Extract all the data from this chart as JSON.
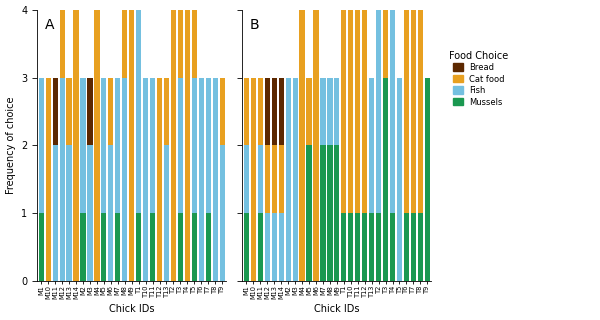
{
  "chick_ids": [
    "M1",
    "M10",
    "M11",
    "M12",
    "M13",
    "M14",
    "M2",
    "M3",
    "M4",
    "M5",
    "M6",
    "M7",
    "M8",
    "M9",
    "T1",
    "T10",
    "T11",
    "T12",
    "T13",
    "T2",
    "T3",
    "T4",
    "T5",
    "T6",
    "T7",
    "T8",
    "T9"
  ],
  "panel_A": {
    "Mussels": [
      1,
      0,
      0,
      0,
      0,
      0,
      1,
      0,
      0,
      1,
      0,
      1,
      0,
      0,
      1,
      0,
      1,
      0,
      0,
      0,
      1,
      0,
      1,
      0,
      1,
      0,
      0
    ],
    "Fish": [
      2,
      0,
      2,
      3,
      2,
      0,
      2,
      2,
      0,
      2,
      2,
      2,
      3,
      0,
      3,
      3,
      2,
      0,
      2,
      0,
      2,
      0,
      2,
      3,
      2,
      3,
      2
    ],
    "Cat_food": [
      0,
      3,
      0,
      1,
      1,
      4,
      0,
      0,
      4,
      0,
      1,
      0,
      1,
      4,
      0,
      0,
      0,
      3,
      1,
      4,
      1,
      4,
      1,
      0,
      0,
      0,
      1
    ],
    "Bread": [
      0,
      0,
      1,
      0,
      0,
      0,
      0,
      1,
      0,
      0,
      0,
      0,
      0,
      0,
      0,
      0,
      0,
      0,
      0,
      0,
      0,
      0,
      0,
      0,
      0,
      0,
      0
    ]
  },
  "panel_B": {
    "Mussels": [
      1,
      0,
      1,
      0,
      0,
      0,
      0,
      0,
      0,
      2,
      0,
      2,
      2,
      2,
      1,
      1,
      1,
      1,
      1,
      1,
      3,
      1,
      0,
      1,
      1,
      1,
      3
    ],
    "Fish": [
      1,
      0,
      1,
      1,
      1,
      1,
      3,
      3,
      0,
      0,
      0,
      1,
      1,
      1,
      0,
      0,
      0,
      0,
      2,
      4,
      0,
      4,
      3,
      0,
      0,
      0,
      0
    ],
    "Cat_food": [
      1,
      3,
      1,
      1,
      1,
      1,
      0,
      0,
      4,
      1,
      4,
      0,
      0,
      0,
      3,
      3,
      3,
      3,
      0,
      0,
      4,
      0,
      0,
      3,
      3,
      3,
      0
    ],
    "Bread": [
      0,
      0,
      0,
      1,
      1,
      1,
      0,
      0,
      0,
      0,
      0,
      0,
      0,
      0,
      0,
      0,
      0,
      0,
      0,
      0,
      0,
      0,
      0,
      0,
      0,
      0,
      0
    ]
  },
  "colors": {
    "Mussels": "#1a9850",
    "Fish": "#74c0e0",
    "Cat_food": "#e8a020",
    "Bread": "#5c2800"
  },
  "ylim": [
    0,
    4
  ],
  "yticks": [
    0,
    1,
    2,
    3,
    4
  ],
  "xlabel": "Chick IDs",
  "ylabel": "Frequency of choice",
  "legend_title": "Food Choice",
  "legend_order": [
    "Bread",
    "Cat_food",
    "Fish",
    "Mussels"
  ],
  "panel_labels": [
    "A",
    "B"
  ],
  "background_color": "#ffffff"
}
